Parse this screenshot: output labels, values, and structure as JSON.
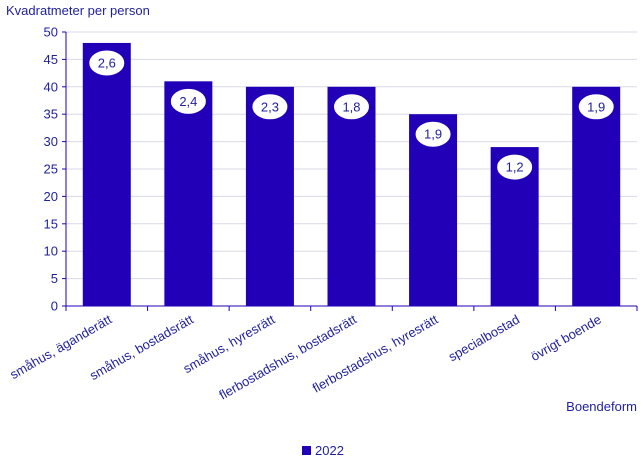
{
  "chart_data": {
    "type": "bar",
    "ylabel": "Kvadratmeter  per person",
    "xlabel": "Boendeform",
    "ylim": [
      0,
      50
    ],
    "yticks": [
      0,
      5,
      10,
      15,
      20,
      25,
      30,
      35,
      40,
      45,
      50
    ],
    "grid": true,
    "legend_position": "bottom-center",
    "categories": [
      "småhus, äganderätt",
      "småhus, bostadsrätt",
      "småhus, hyresrätt",
      "flerbostadshus, bostadsrätt",
      "flerbostadshus, hyresrätt",
      "specialbostad",
      "övrigt boende"
    ],
    "series": [
      {
        "name": "2022",
        "values": [
          48,
          41,
          40,
          40,
          35,
          29,
          40
        ],
        "color": "#2200b8"
      }
    ],
    "annotations": [
      "2,6",
      "2,4",
      "2,3",
      "1,8",
      "1,9",
      "1,2",
      "1,9"
    ]
  },
  "colors": {
    "bar": "#2200b8",
    "text": "#1f1f9f",
    "grid": "#d9d9e6",
    "axis": "#2200b8",
    "bubble_fill": "#ffffff",
    "bubble_stroke": "#2200b8"
  }
}
